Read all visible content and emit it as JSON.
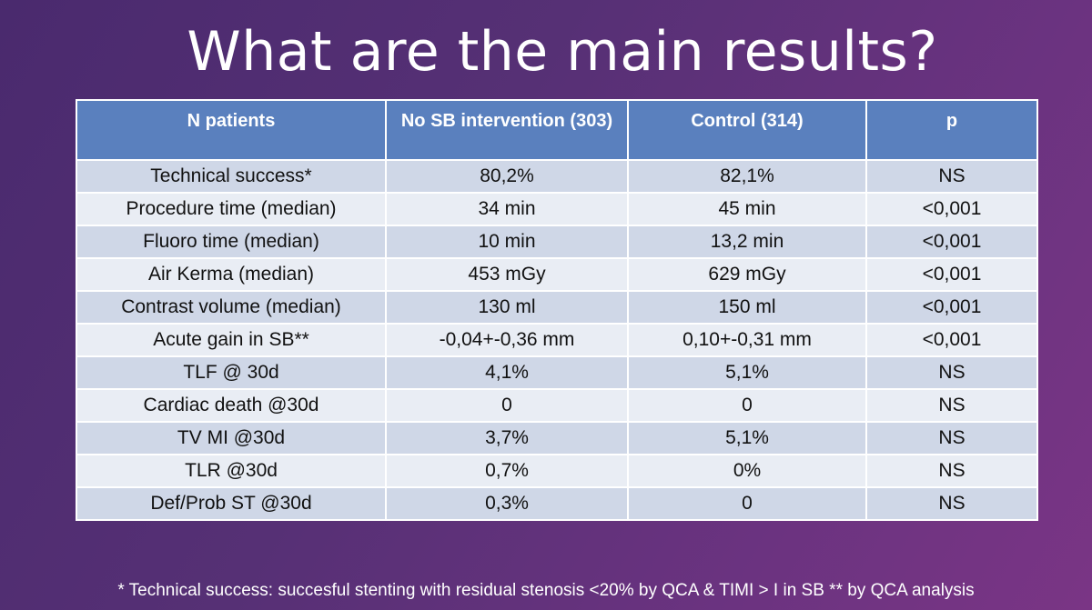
{
  "slide": {
    "title": "What are the main results?"
  },
  "table": {
    "headers": [
      "N patients",
      "No SB intervention (303)",
      "Control (314)",
      "p"
    ],
    "rows": [
      [
        "Technical success*",
        "80,2%",
        "82,1%",
        "NS"
      ],
      [
        "Procedure time (median)",
        "34 min",
        "45 min",
        "<0,001"
      ],
      [
        "Fluoro time (median)",
        "10 min",
        "13,2 min",
        "<0,001"
      ],
      [
        "Air Kerma (median)",
        "453 mGy",
        "629 mGy",
        "<0,001"
      ],
      [
        "Contrast volume (median)",
        "130 ml",
        "150 ml",
        "<0,001"
      ],
      [
        "Acute gain in SB**",
        "-0,04+-0,36 mm",
        "0,10+-0,31 mm",
        "<0,001"
      ],
      [
        "TLF @ 30d",
        "4,1%",
        "5,1%",
        "NS"
      ],
      [
        "Cardiac death @30d",
        "0",
        "0",
        "NS"
      ],
      [
        "TV MI @30d",
        "3,7%",
        "5,1%",
        "NS"
      ],
      [
        "TLR @30d",
        "0,7%",
        "0%",
        "NS"
      ],
      [
        "Def/Prob ST @30d",
        "0,3%",
        "0",
        "NS"
      ]
    ]
  },
  "footnote": "* Technical success: succesful stenting with residual stenosis <20% by QCA & TIMI > I in SB  ** by QCA analysis",
  "colors": {
    "header_bg": "#5a80be",
    "row_odd": "#cfd7e7",
    "row_even": "#e9edf4",
    "background": "#563075"
  }
}
